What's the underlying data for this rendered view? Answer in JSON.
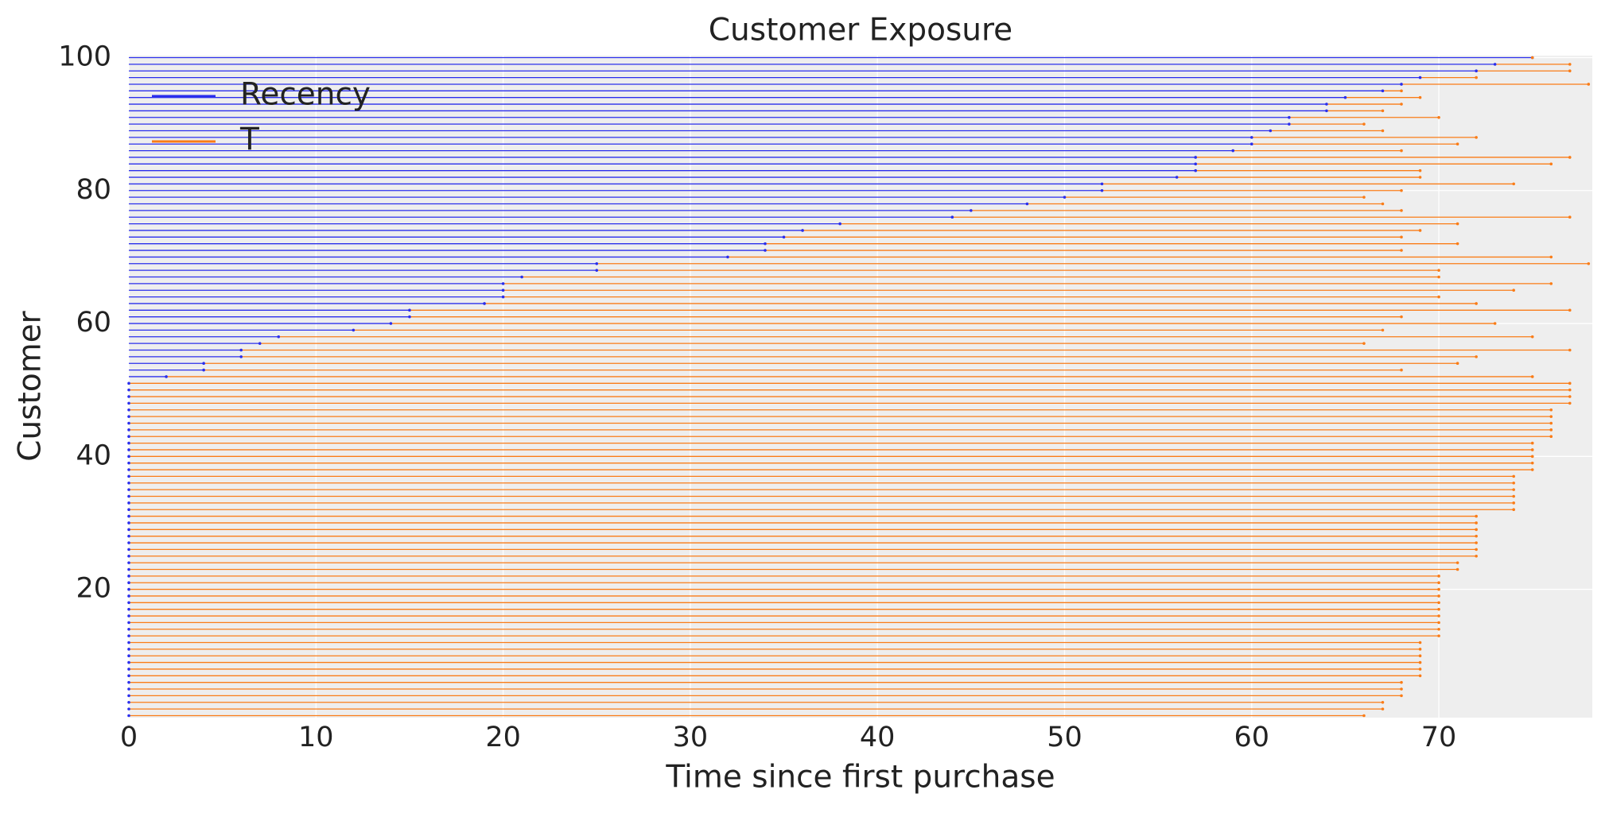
{
  "chart_data": {
    "type": "exposure",
    "title": "Customer Exposure",
    "x_label": "Time since first purchase",
    "y_label": "Customer",
    "y": [
      1,
      2,
      3,
      4,
      5,
      6,
      7,
      8,
      9,
      10,
      11,
      12,
      13,
      14,
      15,
      16,
      17,
      18,
      19,
      20,
      21,
      22,
      23,
      24,
      25,
      26,
      27,
      28,
      29,
      30,
      31,
      32,
      33,
      34,
      35,
      36,
      37,
      38,
      39,
      40,
      41,
      42,
      43,
      44,
      45,
      46,
      47,
      48,
      49,
      50,
      51,
      52,
      53,
      54,
      55,
      56,
      57,
      58,
      59,
      60,
      61,
      62,
      63,
      64,
      65,
      66,
      67,
      68,
      69,
      70,
      71,
      72,
      73,
      74,
      75,
      76,
      77,
      78,
      79,
      80,
      81,
      82,
      83,
      84,
      85,
      86,
      87,
      88,
      89,
      90,
      91,
      92,
      93,
      94,
      95,
      96,
      97,
      98,
      99,
      100
    ],
    "series": [
      {
        "name": "Recency",
        "color": "#2a2eec",
        "values": [
          0,
          0,
          0,
          0,
          0,
          0,
          0,
          0,
          0,
          0,
          0,
          0,
          0,
          0,
          0,
          0,
          0,
          0,
          0,
          0,
          0,
          0,
          0,
          0,
          0,
          0,
          0,
          0,
          0,
          0,
          0,
          0,
          0,
          0,
          0,
          0,
          0,
          0,
          0,
          0,
          0,
          0,
          0,
          0,
          0,
          0,
          0,
          0,
          0,
          0,
          0,
          2,
          4,
          4,
          6,
          6,
          7,
          8,
          12,
          14,
          15,
          15,
          19,
          20,
          20,
          20,
          21,
          25,
          25,
          32,
          34,
          34,
          35,
          36,
          38,
          44,
          45,
          48,
          50,
          52,
          52,
          56,
          57,
          57,
          57,
          59,
          60,
          60,
          61,
          62,
          62,
          64,
          64,
          65,
          67,
          68,
          69,
          72,
          73,
          75
        ]
      },
      {
        "name": "T",
        "color": "#fa7c17",
        "values": [
          66,
          67,
          67,
          68,
          68,
          68,
          69,
          69,
          69,
          69,
          69,
          69,
          70,
          70,
          70,
          70,
          70,
          70,
          70,
          70,
          70,
          70,
          71,
          71,
          72,
          72,
          72,
          72,
          72,
          72,
          72,
          74,
          74,
          74,
          74,
          74,
          74,
          75,
          75,
          75,
          75,
          75,
          76,
          76,
          76,
          76,
          76,
          77,
          77,
          77,
          77,
          75,
          68,
          71,
          72,
          77,
          66,
          75,
          67,
          73,
          68,
          77,
          72,
          70,
          74,
          76,
          70,
          70,
          78,
          76,
          68,
          71,
          68,
          69,
          71,
          77,
          68,
          67,
          66,
          68,
          74,
          69,
          69,
          76,
          77,
          68,
          71,
          72,
          67,
          66,
          70,
          67,
          68,
          69,
          68,
          78,
          72,
          77,
          77,
          75
        ]
      }
    ],
    "xlim": [
      0,
      78.2
    ],
    "ylim": [
      0.7,
      100.3
    ],
    "xticks": [
      0,
      10,
      20,
      30,
      40,
      50,
      60,
      70
    ],
    "yticks": [
      20,
      40,
      60,
      80,
      100
    ],
    "grid": true,
    "legend": "upper left"
  }
}
